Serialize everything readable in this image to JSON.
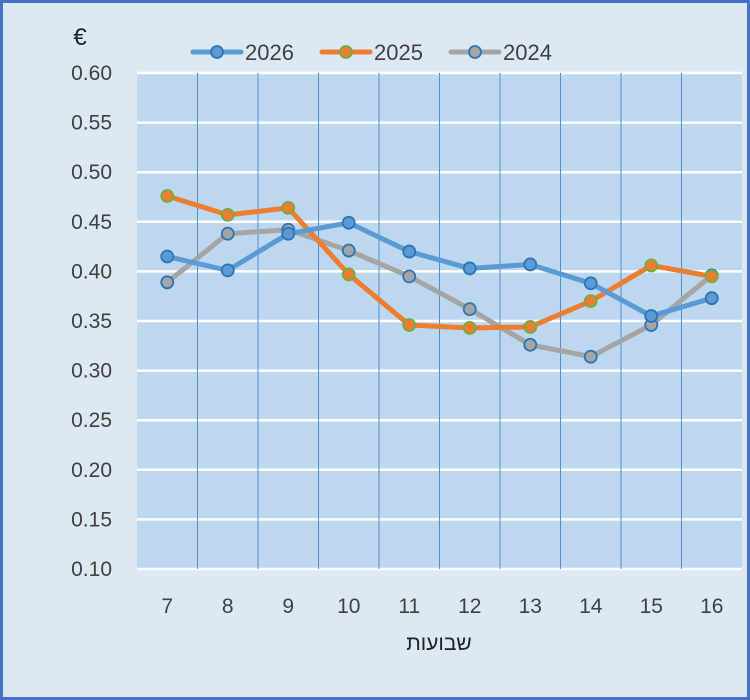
{
  "chart_data": {
    "type": "line",
    "title": "",
    "ylabel": "€",
    "xlabel": "שבועות",
    "ylim": [
      0.1,
      0.6
    ],
    "yticks": [
      "0.10",
      "0.15",
      "0.20",
      "0.25",
      "0.30",
      "0.35",
      "0.40",
      "0.45",
      "0.50",
      "0.55",
      "0.60"
    ],
    "categories": [
      "7",
      "8",
      "9",
      "10",
      "11",
      "12",
      "13",
      "14",
      "15",
      "16"
    ],
    "legend_position": "top",
    "grid": true,
    "series": [
      {
        "name": "2026",
        "color": "#5b9bd5",
        "marker_edge": "#2e75b6",
        "values": [
          0.415,
          0.401,
          0.438,
          0.449,
          0.42,
          0.403,
          0.407,
          0.388,
          0.355,
          0.373
        ]
      },
      {
        "name": "2025",
        "color": "#ed7d31",
        "marker_edge": "#70ad47",
        "values": [
          0.476,
          0.457,
          0.464,
          0.397,
          0.346,
          0.343,
          0.344,
          0.37,
          0.406,
          0.395
        ]
      },
      {
        "name": "2024",
        "color": "#a5a5a5",
        "marker_edge": "#2e75b6",
        "values": [
          0.389,
          0.438,
          0.442,
          0.421,
          0.395,
          0.362,
          0.326,
          0.314,
          0.346,
          0.396
        ]
      }
    ]
  }
}
